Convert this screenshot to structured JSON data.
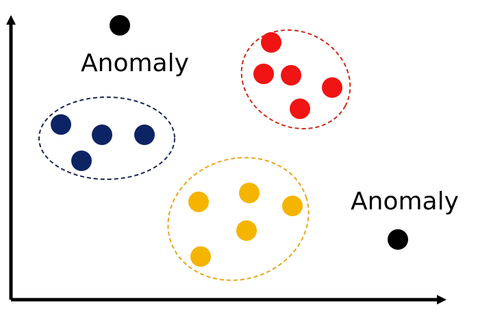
{
  "colors": {
    "axis": "#000000",
    "anomaly": "#000000",
    "cluster_blue": "#0d2464",
    "cluster_red": "#f01414",
    "cluster_yellow": "#f5b400",
    "ellipse_blue": "#1a2450",
    "ellipse_red": "#cc2a1a",
    "ellipse_yellow": "#e8a51a"
  },
  "clusters": [
    {
      "id": "blue",
      "point_count": 4
    },
    {
      "id": "red",
      "point_count": 5
    },
    {
      "id": "yellow",
      "point_count": 5
    }
  ],
  "anomalies": [
    {
      "id": "top-left",
      "label": "Anomaly"
    },
    {
      "id": "bottom-right",
      "label": "Anomaly"
    }
  ]
}
